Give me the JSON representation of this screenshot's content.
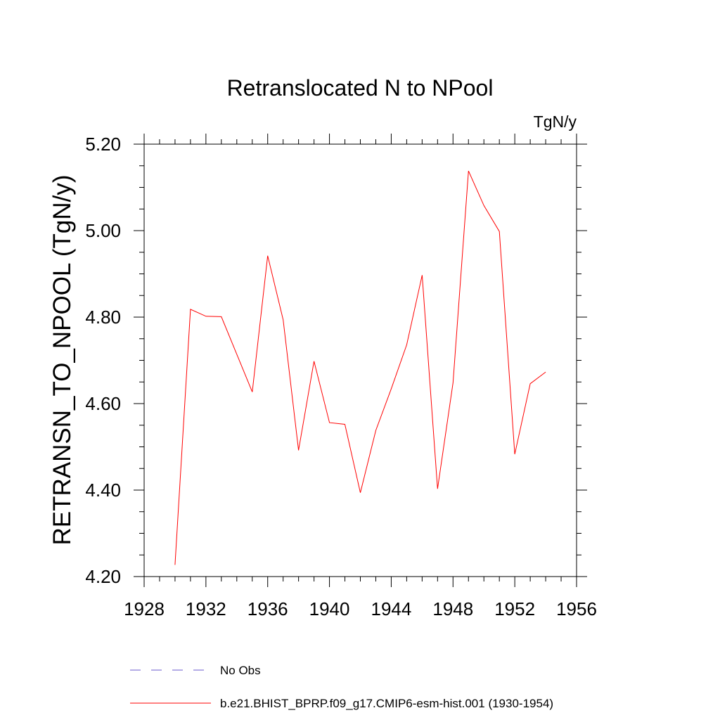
{
  "chart_data": {
    "type": "line",
    "title": "Retranslocated N to NPool",
    "units": "TgN/y",
    "ylabel": "RETRANSN_TO_NPOOL  (TgN/y)",
    "xlabel": "",
    "xlim": [
      1928,
      1956
    ],
    "ylim": [
      4.2,
      5.2
    ],
    "xticks": [
      "1928",
      "1932",
      "1936",
      "1940",
      "1944",
      "1948",
      "1952",
      "1956"
    ],
    "yticks": [
      "4.20",
      "4.40",
      "4.60",
      "4.80",
      "5.00",
      "5.20"
    ],
    "grid": false,
    "legend_position": "bottom",
    "series": [
      {
        "name": "b.e21.BHIST_BPRP.f09_g17.CMIP6-esm-hist.001 (1930-1954)",
        "color": "#ff0000",
        "style": "solid",
        "x": [
          1930,
          1931,
          1932,
          1933,
          1934,
          1935,
          1936,
          1937,
          1938,
          1939,
          1940,
          1941,
          1942,
          1943,
          1944,
          1945,
          1946,
          1947,
          1948,
          1949,
          1950,
          1951,
          1952,
          1953,
          1954
        ],
        "y": [
          4.227,
          4.818,
          4.802,
          4.801,
          4.714,
          4.627,
          4.942,
          4.794,
          4.492,
          4.698,
          4.556,
          4.552,
          4.394,
          4.538,
          4.634,
          4.736,
          4.897,
          4.403,
          4.648,
          5.138,
          5.058,
          4.998,
          4.483,
          4.646,
          4.673
        ]
      }
    ],
    "legend": [
      {
        "label": "No Obs",
        "color": "#6a5acd",
        "style": "dashed"
      },
      {
        "label": "b.e21.BHIST_BPRP.f09_g17.CMIP6-esm-hist.001 (1930-1954)",
        "color": "#ff0000",
        "style": "solid"
      }
    ]
  }
}
